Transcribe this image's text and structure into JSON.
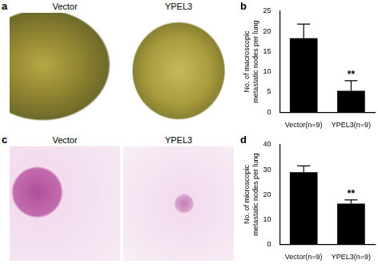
{
  "figure": {
    "image_panels": [
      {
        "panel_label": "a",
        "captions": [
          "Vector",
          "YPEL3"
        ]
      },
      {
        "panel_label": "c",
        "captions": [
          "Vector",
          "YPEL3"
        ]
      }
    ]
  },
  "chart_data": [
    {
      "type": "bar",
      "panel_label": "b",
      "y_label": "No. of macroscopic metastatic nodes per lung",
      "categories": [
        "Vector(n=9)",
        "YPEL3(n=9)"
      ],
      "values": [
        18.3,
        5.3
      ],
      "errors": [
        3.5,
        2.5
      ],
      "color": "#000000",
      "ylim": [
        0,
        25
      ],
      "yticks": [
        0,
        5,
        10,
        15,
        20,
        25
      ],
      "grid": false,
      "annotations": [
        {
          "text": "**",
          "category": "YPEL3(n=9)"
        }
      ]
    },
    {
      "type": "bar",
      "panel_label": "d",
      "y_label": "No. of microscopic metastatic nodes per lung",
      "categories": [
        "Vector(n=9)",
        "YPEL3(n=9)"
      ],
      "values": [
        29,
        16.3
      ],
      "errors": [
        2.5,
        1.5
      ],
      "color": "#000000",
      "ylim": [
        0,
        40
      ],
      "yticks": [
        0,
        10,
        20,
        30,
        40
      ],
      "grid": false,
      "annotations": [
        {
          "text": "**",
          "category": "YPEL3(n=9)"
        }
      ]
    }
  ]
}
